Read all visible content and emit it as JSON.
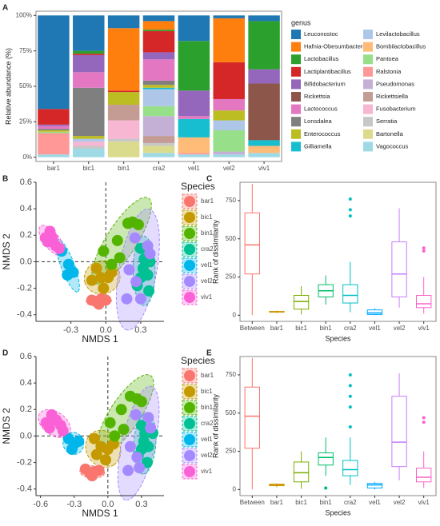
{
  "chart_data": [
    {
      "type": "stacked_bar",
      "label": "A",
      "ylabel": "Relative abundance (%)",
      "legend_title": "genus",
      "categories": [
        "bar1",
        "bic1",
        "bin1",
        "cra2",
        "vel1",
        "vel2",
        "viv1"
      ],
      "ylim": [
        -3,
        103
      ],
      "yticks": [
        {
          "value": 0,
          "label": "0%"
        },
        {
          "value": 25,
          "label": "25%"
        },
        {
          "value": 50,
          "label": "50%"
        },
        {
          "value": 75,
          "label": "75%"
        },
        {
          "value": 100,
          "label": "100%"
        }
      ],
      "series": [
        {
          "name": "Leuconostoc",
          "color": "#1f77b4",
          "values": [
            66,
            25,
            9,
            4,
            18,
            2,
            4
          ]
        },
        {
          "name": "Hafnia-Obesumbacterium",
          "color": "#ff7f0e",
          "values": [
            0,
            0,
            44,
            6,
            0,
            31,
            0
          ]
        },
        {
          "name": "Lactobacillus",
          "color": "#2ca02c",
          "values": [
            0,
            2,
            0,
            1,
            35,
            0,
            34
          ]
        },
        {
          "name": "Lactiplantibacillus",
          "color": "#d62728",
          "values": [
            11,
            1,
            1,
            15,
            0,
            26,
            0
          ]
        },
        {
          "name": "Bifidobacterium",
          "color": "#9467bd",
          "values": [
            1,
            12,
            0,
            5,
            18,
            0,
            10
          ]
        },
        {
          "name": "Rickettsia",
          "color": "#8c564b",
          "values": [
            0,
            0,
            0,
            0,
            0,
            0,
            40
          ]
        },
        {
          "name": "Lactococcus",
          "color": "#e377c2",
          "values": [
            2,
            11,
            0,
            15,
            2,
            8,
            0
          ]
        },
        {
          "name": "Lonsdalea",
          "color": "#7f7f7f",
          "values": [
            1,
            34,
            0,
            3,
            0,
            0,
            0
          ]
        },
        {
          "name": "Enterococcus",
          "color": "#bcbd22",
          "values": [
            1,
            2,
            9,
            2,
            0,
            7,
            0
          ]
        },
        {
          "name": "Gilliamella",
          "color": "#17becf",
          "values": [
            0,
            0,
            0,
            1,
            13,
            0,
            4
          ]
        },
        {
          "name": "Levilactobacillus",
          "color": "#aec7e8",
          "values": [
            0,
            2,
            0,
            12,
            0,
            7,
            0
          ]
        },
        {
          "name": "Bombilactobacillus",
          "color": "#ffbb78",
          "values": [
            0,
            0,
            0,
            0,
            11,
            0,
            5
          ]
        },
        {
          "name": "Pantoea",
          "color": "#98df8a",
          "values": [
            1,
            0,
            0,
            7,
            0,
            15,
            0
          ]
        },
        {
          "name": "Ralstonia",
          "color": "#ff9896",
          "values": [
            15,
            0,
            0,
            0,
            1,
            0,
            0
          ]
        },
        {
          "name": "Pseudomonas",
          "color": "#c5b0d5",
          "values": [
            0,
            0,
            0,
            14,
            0,
            2,
            0
          ]
        },
        {
          "name": "Rickettsiella",
          "color": "#c49c94",
          "values": [
            0,
            0,
            11,
            5,
            0,
            0,
            0
          ]
        },
        {
          "name": "Fusobacterium",
          "color": "#f7b6d2",
          "values": [
            0,
            3,
            13,
            0,
            0,
            0,
            0
          ]
        },
        {
          "name": "Serratia",
          "color": "#c7c7c7",
          "values": [
            0,
            2,
            2,
            2,
            0,
            0,
            0
          ]
        },
        {
          "name": "Bartonella",
          "color": "#dbdb8d",
          "values": [
            0,
            0,
            11,
            5,
            0,
            0,
            0
          ]
        },
        {
          "name": "Vagococcus",
          "color": "#9edae5",
          "values": [
            2,
            6,
            0,
            3,
            2,
            2,
            3
          ]
        }
      ]
    },
    {
      "type": "scatter",
      "label": "B",
      "xlabel": "NMDS 1",
      "ylabel": "NMDS 2",
      "legend_title": "Species",
      "xlim": [
        -0.6,
        0.5
      ],
      "ylim": [
        -0.45,
        0.6
      ],
      "xticks": [
        -0.3,
        {
          "value": 0,
          "label": "0.0"
        },
        0.3
      ],
      "yticks": [
        -0.4,
        -0.2,
        {
          "value": 0,
          "label": "0.0"
        },
        0.2,
        0.4,
        0.6
      ],
      "series": [
        {
          "name": "bar1",
          "color": "#F8766D",
          "x": [
            -0.12,
            -0.08,
            -0.04,
            0.0,
            -0.06
          ],
          "y": [
            -0.29,
            -0.3,
            -0.28,
            -0.29,
            -0.32
          ]
        },
        {
          "name": "bic1",
          "color": "#C49A00",
          "x": [
            -0.08,
            -0.04,
            0.02,
            -0.12,
            -0.02,
            0.05
          ],
          "y": [
            -0.05,
            -0.12,
            -0.12,
            -0.14,
            -0.2,
            -0.08
          ]
        },
        {
          "name": "bin1",
          "color": "#53B400",
          "x": [
            -0.02,
            0.1,
            0.19,
            0.23,
            0.28,
            0.12,
            0.05
          ],
          "y": [
            0.08,
            0.16,
            0.29,
            0.3,
            0.28,
            0.03,
            -0.02
          ]
        },
        {
          "name": "cra2",
          "color": "#00C094",
          "x": [
            0.3,
            0.33,
            0.38,
            0.3,
            0.37,
            0.32,
            0.27,
            0.36
          ],
          "y": [
            0.1,
            0.02,
            0.0,
            -0.12,
            -0.22,
            -0.05,
            -0.18,
            -0.1
          ]
        },
        {
          "name": "vel1",
          "color": "#00B6EB",
          "x": [
            -0.38,
            -0.32,
            -0.28,
            -0.33
          ],
          "y": [
            0.08,
            -0.02,
            -0.08,
            -0.1
          ]
        },
        {
          "name": "vel2",
          "color": "#A58AFF",
          "x": [
            0.25,
            0.36,
            0.38,
            0.2,
            0.18,
            0.26,
            0.3
          ],
          "y": [
            0.18,
            0.12,
            0.06,
            -0.06,
            -0.28,
            -0.15,
            -0.28
          ]
        },
        {
          "name": "viv1",
          "color": "#FB61D7",
          "x": [
            -0.52,
            -0.48,
            -0.46,
            -0.43,
            -0.5,
            -0.4
          ],
          "y": [
            0.18,
            0.23,
            0.18,
            0.12,
            0.15,
            0.1
          ]
        }
      ]
    },
    {
      "type": "box",
      "label": "C",
      "xlabel": "Species",
      "ylabel": "Rank of dissimilarity",
      "categories": [
        "Between",
        "bar1",
        "bic1",
        "bin1",
        "cra2",
        "vel1",
        "vel2",
        "viv1"
      ],
      "colors": [
        "#F8766D",
        "#CD9600",
        "#7CAE00",
        "#00BE67",
        "#00BFC4",
        "#00A9FF",
        "#C77CFF",
        "#FF61CC"
      ],
      "ylim": [
        -40,
        870
      ],
      "yticks": [
        0,
        250,
        500,
        750
      ],
      "boxes": [
        {
          "min": 0,
          "q1": 270,
          "median": 460,
          "q3": 670,
          "max": 860,
          "outliers": []
        },
        {
          "min": 15,
          "q1": 20,
          "median": 22,
          "q3": 25,
          "max": 30,
          "outliers": []
        },
        {
          "min": 5,
          "q1": 40,
          "median": 90,
          "q3": 130,
          "max": 190,
          "outliers": []
        },
        {
          "min": 70,
          "q1": 120,
          "median": 160,
          "q3": 200,
          "max": 260,
          "outliers": []
        },
        {
          "min": 20,
          "q1": 80,
          "median": 130,
          "q3": 200,
          "max": 350,
          "outliers": [
            650,
            690,
            760
          ]
        },
        {
          "min": 0,
          "q1": 5,
          "median": 15,
          "q3": 35,
          "max": 45,
          "outliers": []
        },
        {
          "min": 50,
          "q1": 120,
          "median": 270,
          "q3": 480,
          "max": 700,
          "outliers": []
        },
        {
          "min": 10,
          "q1": 50,
          "median": 75,
          "q3": 130,
          "max": 250,
          "outliers": [
            420,
            440
          ]
        }
      ]
    },
    {
      "type": "scatter",
      "label": "D",
      "xlabel": "NMDS 1",
      "ylabel": "NMDS 2",
      "legend_title": "Species",
      "xlim": [
        -0.64,
        0.5
      ],
      "ylim": [
        -0.45,
        0.6
      ],
      "xticks": [
        -0.6,
        -0.3,
        {
          "value": 0,
          "label": "0.0"
        },
        0.3
      ],
      "yticks": [
        -0.4,
        -0.2,
        {
          "value": 0,
          "label": "0.0"
        },
        0.2,
        0.4,
        0.6
      ],
      "series": [
        {
          "name": "bar1",
          "color": "#F8766D",
          "x": [
            -0.2,
            -0.16,
            -0.12,
            -0.08,
            -0.14
          ],
          "y": [
            -0.25,
            -0.28,
            -0.27,
            -0.26,
            -0.3
          ]
        },
        {
          "name": "bic1",
          "color": "#C49A00",
          "x": [
            -0.12,
            -0.06,
            0.0,
            -0.1,
            -0.02,
            0.05
          ],
          "y": [
            -0.02,
            -0.08,
            -0.1,
            -0.14,
            -0.18,
            -0.06
          ]
        },
        {
          "name": "bin1",
          "color": "#53B400",
          "x": [
            0.02,
            0.12,
            0.2,
            0.26,
            0.3,
            0.14,
            0.06
          ],
          "y": [
            0.1,
            0.2,
            0.3,
            0.28,
            0.26,
            0.05,
            0.0
          ]
        },
        {
          "name": "cra2",
          "color": "#00C094",
          "x": [
            0.3,
            0.33,
            0.4,
            0.3,
            0.35,
            0.32,
            0.27,
            0.36
          ],
          "y": [
            0.08,
            0.02,
            0.02,
            -0.1,
            -0.2,
            -0.04,
            -0.15,
            -0.08
          ]
        },
        {
          "name": "vel1",
          "color": "#00B6EB",
          "x": [
            -0.35,
            -0.3,
            -0.26,
            -0.32
          ],
          "y": [
            -0.02,
            -0.06,
            -0.04,
            -0.1
          ]
        },
        {
          "name": "vel2",
          "color": "#A58AFF",
          "x": [
            0.25,
            0.36,
            0.38,
            0.2,
            0.18,
            0.26,
            0.28
          ],
          "y": [
            0.16,
            0.14,
            0.06,
            -0.08,
            -0.26,
            -0.16,
            -0.24
          ]
        },
        {
          "name": "viv1",
          "color": "#FB61D7",
          "x": [
            -0.55,
            -0.5,
            -0.46,
            -0.42,
            -0.52,
            -0.4
          ],
          "y": [
            0.1,
            0.16,
            0.12,
            0.08,
            0.06,
            0.04
          ]
        }
      ]
    },
    {
      "type": "box",
      "label": "E",
      "xlabel": "Species",
      "ylabel": "Rank of dissimilarity",
      "categories": [
        "Between",
        "bar1",
        "bic1",
        "bin1",
        "cra2",
        "vel1",
        "vel2",
        "viv1"
      ],
      "colors": [
        "#F8766D",
        "#CD9600",
        "#7CAE00",
        "#00BE67",
        "#00BFC4",
        "#00A9FF",
        "#C77CFF",
        "#FF61CC"
      ],
      "ylim": [
        -40,
        870
      ],
      "yticks": [
        0,
        250,
        500,
        750
      ],
      "boxes": [
        {
          "min": 0,
          "q1": 270,
          "median": 480,
          "q3": 670,
          "max": 860,
          "outliers": []
        },
        {
          "min": 15,
          "q1": 25,
          "median": 30,
          "q3": 35,
          "max": 40,
          "outliers": []
        },
        {
          "min": 5,
          "q1": 50,
          "median": 110,
          "q3": 180,
          "max": 250,
          "outliers": []
        },
        {
          "min": 90,
          "q1": 160,
          "median": 210,
          "q3": 240,
          "max": 340,
          "outliers": [
            10
          ]
        },
        {
          "min": 30,
          "q1": 90,
          "median": 130,
          "q3": 190,
          "max": 340,
          "outliers": [
            410,
            540,
            610,
            680,
            750
          ]
        },
        {
          "min": 0,
          "q1": 10,
          "median": 30,
          "q3": 40,
          "max": 50,
          "outliers": []
        },
        {
          "min": 60,
          "q1": 150,
          "median": 310,
          "q3": 610,
          "max": 760,
          "outliers": []
        },
        {
          "min": 10,
          "q1": 50,
          "median": 80,
          "q3": 140,
          "max": 250,
          "outliers": [
            440,
            470
          ]
        }
      ]
    }
  ]
}
